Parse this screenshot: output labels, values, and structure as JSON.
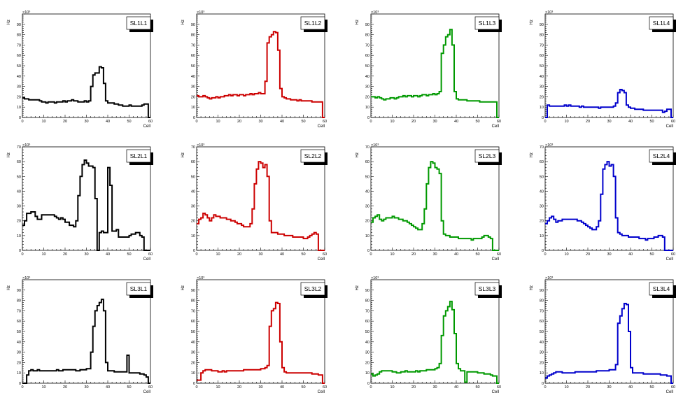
{
  "chart_data": [
    {
      "type": "bar",
      "title": "SL1L1",
      "color": "#000000",
      "xlabel": "Cell",
      "ylabel": "Hz",
      "exponent": "×10³",
      "xlim": [
        0,
        60
      ],
      "ylim": [
        0,
        100
      ],
      "x_tick_labels": [
        "0",
        "10",
        "20",
        "30",
        "40",
        "50",
        "60"
      ],
      "y_tick_labels": [
        "0",
        "10",
        "20",
        "30",
        "40",
        "50",
        "60",
        "70",
        "80",
        "90"
      ],
      "values": [
        19,
        18,
        18,
        17,
        17,
        17,
        17,
        17,
        16,
        15,
        15,
        14,
        15,
        15,
        15,
        14,
        15,
        15,
        15,
        16,
        15,
        16,
        16,
        17,
        16,
        16,
        15,
        15,
        15,
        16,
        15,
        16,
        30,
        41,
        43,
        43,
        49,
        48,
        33,
        16,
        14,
        14,
        14,
        13,
        13,
        12,
        12,
        11,
        11,
        11,
        12,
        11,
        11,
        11,
        11,
        11,
        12,
        13,
        13,
        0
      ]
    },
    {
      "type": "bar",
      "title": "SL1L2",
      "color": "#cc0000",
      "xlabel": "Cell",
      "ylabel": "Hz",
      "exponent": "×10³",
      "xlim": [
        0,
        60
      ],
      "ylim": [
        0,
        100
      ],
      "x_tick_labels": [
        "0",
        "10",
        "20",
        "30",
        "40",
        "50",
        "60"
      ],
      "y_tick_labels": [
        "0",
        "10",
        "20",
        "30",
        "40",
        "50",
        "60",
        "70",
        "80",
        "90"
      ],
      "values": [
        21,
        20,
        20,
        21,
        20,
        19,
        18,
        19,
        19,
        20,
        19,
        20,
        20,
        21,
        21,
        22,
        21,
        22,
        22,
        21,
        22,
        22,
        21,
        22,
        22,
        23,
        22,
        23,
        23,
        24,
        23,
        23,
        35,
        72,
        78,
        80,
        83,
        82,
        65,
        28,
        20,
        19,
        18,
        18,
        17,
        17,
        17,
        16,
        17,
        16,
        16,
        16,
        16,
        16,
        15,
        15,
        15,
        15,
        15,
        0
      ]
    },
    {
      "type": "bar",
      "title": "SL1L3",
      "color": "#009900",
      "xlabel": "Cell",
      "ylabel": "Hz",
      "exponent": "×10³",
      "xlim": [
        0,
        60
      ],
      "ylim": [
        0,
        100
      ],
      "x_tick_labels": [
        "0",
        "10",
        "20",
        "30",
        "40",
        "50",
        "60"
      ],
      "y_tick_labels": [
        "0",
        "10",
        "20",
        "30",
        "40",
        "50",
        "60",
        "70",
        "80",
        "90"
      ],
      "values": [
        20,
        20,
        19,
        20,
        19,
        18,
        17,
        18,
        18,
        19,
        19,
        18,
        19,
        20,
        20,
        21,
        20,
        21,
        21,
        20,
        21,
        21,
        20,
        21,
        22,
        22,
        21,
        22,
        22,
        23,
        22,
        23,
        25,
        62,
        70,
        78,
        80,
        85,
        70,
        25,
        18,
        17,
        17,
        17,
        17,
        16,
        16,
        16,
        16,
        16,
        16,
        15,
        15,
        15,
        15,
        15,
        15,
        15,
        15,
        0
      ]
    },
    {
      "type": "bar",
      "title": "SL1L4",
      "color": "#0000cc",
      "xlabel": "Cell",
      "ylabel": "Hz",
      "exponent": "×10³",
      "xlim": [
        0,
        60
      ],
      "ylim": [
        0,
        100
      ],
      "x_tick_labels": [
        "0",
        "10",
        "20",
        "30",
        "40",
        "50",
        "60"
      ],
      "y_tick_labels": [
        "0",
        "10",
        "20",
        "30",
        "40",
        "50",
        "60",
        "70",
        "80",
        "90"
      ],
      "values": [
        0,
        12,
        11,
        11,
        11,
        11,
        11,
        11,
        11,
        12,
        11,
        12,
        11,
        11,
        11,
        11,
        10,
        11,
        10,
        10,
        10,
        10,
        10,
        10,
        10,
        9,
        10,
        10,
        10,
        10,
        10,
        10,
        11,
        14,
        24,
        27,
        26,
        24,
        12,
        10,
        9,
        9,
        8,
        8,
        8,
        8,
        7,
        7,
        7,
        7,
        7,
        7,
        7,
        7,
        7,
        5,
        6,
        8,
        8,
        0
      ]
    },
    {
      "type": "bar",
      "title": "SL2L1",
      "color": "#000000",
      "xlabel": "Cell",
      "ylabel": "Hz",
      "exponent": "×10³",
      "xlim": [
        0,
        60
      ],
      "ylim": [
        0,
        70
      ],
      "x_tick_labels": [
        "0",
        "10",
        "20",
        "30",
        "40",
        "50",
        "60"
      ],
      "y_tick_labels": [
        "0",
        "10",
        "20",
        "30",
        "40",
        "50",
        "60",
        "70"
      ],
      "values": [
        17,
        20,
        25,
        25,
        26,
        26,
        23,
        21,
        21,
        24,
        24,
        24,
        24,
        24,
        24,
        23,
        22,
        21,
        22,
        21,
        19,
        19,
        17,
        17,
        16,
        20,
        37,
        50,
        58,
        61,
        59,
        57,
        57,
        56,
        35,
        0,
        12,
        13,
        12,
        12,
        56,
        44,
        13,
        13,
        14,
        9,
        9,
        9,
        9,
        9,
        10,
        11,
        11,
        12,
        12,
        10,
        9,
        0,
        0,
        0
      ]
    },
    {
      "type": "bar",
      "title": "SL2L2",
      "color": "#cc0000",
      "xlabel": "Cell",
      "ylabel": "Hz",
      "exponent": "×10³",
      "xlim": [
        0,
        60
      ],
      "ylim": [
        0,
        70
      ],
      "x_tick_labels": [
        "0",
        "10",
        "20",
        "30",
        "40",
        "50",
        "60"
      ],
      "y_tick_labels": [
        "0",
        "10",
        "20",
        "30",
        "40",
        "50",
        "60",
        "70"
      ],
      "values": [
        18,
        21,
        22,
        25,
        24,
        22,
        20,
        22,
        24,
        23,
        23,
        22,
        22,
        22,
        21,
        21,
        20,
        20,
        19,
        18,
        18,
        17,
        16,
        16,
        16,
        18,
        28,
        45,
        55,
        60,
        59,
        56,
        58,
        50,
        20,
        12,
        12,
        12,
        11,
        11,
        11,
        10,
        10,
        10,
        10,
        9,
        9,
        9,
        9,
        9,
        8,
        8,
        9,
        10,
        11,
        12,
        11,
        0,
        0,
        0
      ]
    },
    {
      "type": "bar",
      "title": "SL2L3",
      "color": "#009900",
      "xlabel": "Cell",
      "ylabel": "Hz",
      "exponent": "×10³",
      "xlim": [
        0,
        60
      ],
      "ylim": [
        0,
        70
      ],
      "x_tick_labels": [
        "0",
        "10",
        "20",
        "30",
        "40",
        "50",
        "60"
      ],
      "y_tick_labels": [
        "0",
        "10",
        "20",
        "30",
        "40",
        "50",
        "60",
        "70"
      ],
      "values": [
        19,
        22,
        23,
        24,
        21,
        20,
        21,
        22,
        22,
        22,
        23,
        22,
        22,
        21,
        21,
        20,
        20,
        19,
        18,
        17,
        16,
        15,
        14,
        14,
        18,
        28,
        45,
        56,
        60,
        59,
        56,
        55,
        52,
        20,
        11,
        10,
        10,
        9,
        9,
        9,
        9,
        8,
        8,
        8,
        8,
        8,
        8,
        7,
        8,
        8,
        8,
        8,
        9,
        10,
        10,
        9,
        8,
        0,
        0,
        0
      ]
    },
    {
      "type": "bar",
      "title": "SL2L4",
      "color": "#0000cc",
      "xlabel": "Cell",
      "ylabel": "Hz",
      "exponent": "×10³",
      "xlim": [
        0,
        60
      ],
      "ylim": [
        0,
        70
      ],
      "x_tick_labels": [
        "0",
        "10",
        "20",
        "30",
        "40",
        "50",
        "60"
      ],
      "y_tick_labels": [
        "0",
        "10",
        "20",
        "30",
        "40",
        "50",
        "60",
        "70"
      ],
      "values": [
        18,
        20,
        22,
        23,
        21,
        19,
        20,
        20,
        21,
        21,
        21,
        21,
        21,
        21,
        21,
        20,
        20,
        19,
        18,
        17,
        16,
        15,
        14,
        14,
        16,
        20,
        38,
        55,
        58,
        60,
        57,
        58,
        50,
        22,
        12,
        11,
        10,
        10,
        10,
        9,
        9,
        9,
        9,
        9,
        8,
        8,
        8,
        7,
        8,
        8,
        8,
        9,
        9,
        10,
        10,
        9,
        0,
        0,
        0,
        0
      ]
    },
    {
      "type": "bar",
      "title": "SL3L1",
      "color": "#000000",
      "xlabel": "Cell",
      "ylabel": "Hz",
      "exponent": "×10³",
      "xlim": [
        0,
        60
      ],
      "ylim": [
        0,
        100
      ],
      "x_tick_labels": [
        "0",
        "10",
        "20",
        "30",
        "40",
        "50",
        "60"
      ],
      "y_tick_labels": [
        "0",
        "10",
        "20",
        "30",
        "40",
        "50",
        "60",
        "70",
        "80",
        "90"
      ],
      "values": [
        0,
        0,
        8,
        12,
        13,
        12,
        12,
        13,
        12,
        12,
        12,
        12,
        12,
        12,
        12,
        12,
        13,
        12,
        12,
        13,
        13,
        13,
        13,
        13,
        13,
        12,
        12,
        13,
        13,
        13,
        14,
        14,
        30,
        55,
        70,
        75,
        78,
        81,
        70,
        20,
        12,
        12,
        12,
        11,
        11,
        11,
        11,
        11,
        11,
        27,
        10,
        10,
        10,
        10,
        10,
        9,
        9,
        8,
        6,
        0
      ]
    },
    {
      "type": "bar",
      "title": "SL3L2",
      "color": "#cc0000",
      "xlabel": "Cell",
      "ylabel": "Hz",
      "exponent": "×10³",
      "xlim": [
        0,
        60
      ],
      "ylim": [
        0,
        100
      ],
      "x_tick_labels": [
        "0",
        "10",
        "20",
        "30",
        "40",
        "50",
        "60"
      ],
      "y_tick_labels": [
        "0",
        "10",
        "20",
        "30",
        "40",
        "50",
        "60",
        "70",
        "80",
        "90"
      ],
      "values": [
        3,
        3,
        10,
        12,
        13,
        13,
        13,
        12,
        12,
        12,
        11,
        11,
        12,
        11,
        12,
        12,
        12,
        12,
        12,
        12,
        12,
        12,
        13,
        13,
        13,
        13,
        13,
        13,
        13,
        13,
        14,
        14,
        15,
        17,
        55,
        70,
        72,
        78,
        77,
        40,
        15,
        11,
        10,
        10,
        10,
        10,
        10,
        10,
        10,
        10,
        10,
        10,
        10,
        10,
        9,
        9,
        9,
        8,
        8,
        0
      ]
    },
    {
      "type": "bar",
      "title": "SL3L3",
      "color": "#009900",
      "xlabel": "Cell",
      "ylabel": "Hz",
      "exponent": "×10³",
      "xlim": [
        0,
        60
      ],
      "ylim": [
        0,
        100
      ],
      "x_tick_labels": [
        "0",
        "10",
        "20",
        "30",
        "40",
        "50",
        "60"
      ],
      "y_tick_labels": [
        "0",
        "10",
        "20",
        "30",
        "40",
        "50",
        "60",
        "70",
        "80",
        "90"
      ],
      "values": [
        9,
        7,
        8,
        9,
        11,
        12,
        12,
        12,
        12,
        12,
        11,
        11,
        10,
        10,
        11,
        11,
        12,
        11,
        11,
        11,
        11,
        12,
        11,
        12,
        12,
        12,
        13,
        13,
        13,
        13,
        14,
        15,
        19,
        46,
        65,
        70,
        74,
        79,
        71,
        48,
        19,
        14,
        12,
        12,
        1,
        11,
        11,
        11,
        11,
        11,
        10,
        10,
        10,
        9,
        9,
        9,
        8,
        7,
        7,
        0
      ]
    },
    {
      "type": "bar",
      "title": "SL3L4",
      "color": "#0000cc",
      "xlabel": "Cell",
      "ylabel": "Hz",
      "exponent": "×10³",
      "xlim": [
        0,
        60
      ],
      "ylim": [
        0,
        100
      ],
      "x_tick_labels": [
        "0",
        "10",
        "20",
        "30",
        "40",
        "50",
        "60"
      ],
      "y_tick_labels": [
        "0",
        "10",
        "20",
        "30",
        "40",
        "50",
        "60",
        "70",
        "80",
        "90"
      ],
      "values": [
        5,
        7,
        8,
        9,
        10,
        11,
        11,
        11,
        10,
        10,
        10,
        10,
        10,
        10,
        11,
        11,
        11,
        11,
        11,
        11,
        11,
        11,
        11,
        11,
        12,
        12,
        12,
        12,
        12,
        12,
        13,
        13,
        13,
        18,
        58,
        65,
        72,
        77,
        76,
        50,
        15,
        10,
        10,
        10,
        10,
        10,
        9,
        9,
        9,
        9,
        9,
        9,
        9,
        9,
        8,
        8,
        8,
        7,
        7,
        0
      ]
    }
  ]
}
